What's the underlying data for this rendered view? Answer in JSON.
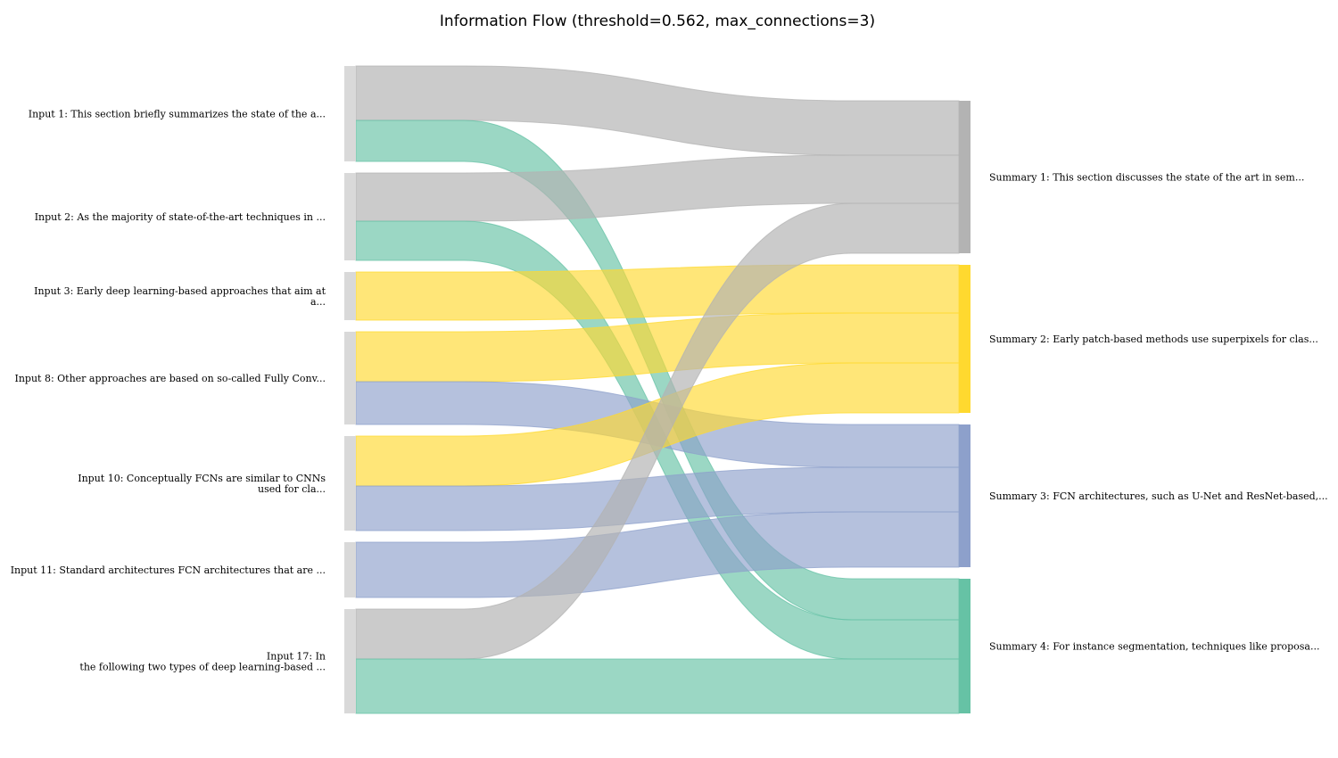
{
  "title": "Information Flow (threshold=0.562, max_connections=3)",
  "colors": {
    "gray": "#b3b3b3",
    "yellow": "#ffd92f",
    "blue": "#8da0cb",
    "green": "#66c2a5",
    "source_bar": "#d9d9d9"
  },
  "sources": [
    {
      "id": "in1",
      "lines": [
        "Input 1: This section briefly summarizes the state of the a..."
      ]
    },
    {
      "id": "in2",
      "lines": [
        "Input 2: As the majority of state-of-the-art techniques in ..."
      ]
    },
    {
      "id": "in3",
      "lines": [
        "Input 3: Early deep learning-based approaches that aim at",
        "a..."
      ]
    },
    {
      "id": "in8",
      "lines": [
        "Input 8: Other approaches are based on so-called Fully Conv..."
      ]
    },
    {
      "id": "in10",
      "lines": [
        "Input 10: Conceptually FCNs are similar to CNNs",
        "used for cla..."
      ]
    },
    {
      "id": "in11",
      "lines": [
        "Input 11: Standard architectures FCN architectures that are ..."
      ]
    },
    {
      "id": "in17",
      "lines": [
        "Input 17: In",
        "the following two types of deep learning-based ..."
      ]
    }
  ],
  "targets": [
    {
      "id": "s1",
      "color": "gray",
      "lines": [
        "Summary 1: This section discusses the state of the art in sem..."
      ]
    },
    {
      "id": "s2",
      "color": "yellow",
      "lines": [
        "Summary 2: Early patch-based methods use superpixels for clas..."
      ]
    },
    {
      "id": "s3",
      "color": "blue",
      "lines": [
        "Summary 3: FCN architectures, such as U-Net and ResNet-based,..."
      ]
    },
    {
      "id": "s4",
      "color": "green",
      "lines": [
        "Summary 4: For instance segmentation, techniques like proposa..."
      ]
    }
  ],
  "links": [
    {
      "source": "in1",
      "target": "s1",
      "color": "gray",
      "weight": 61
    },
    {
      "source": "in1",
      "target": "s4",
      "color": "green",
      "weight": 46
    },
    {
      "source": "in2",
      "target": "s1",
      "color": "gray",
      "weight": 54
    },
    {
      "source": "in2",
      "target": "s4",
      "color": "green",
      "weight": 44
    },
    {
      "source": "in3",
      "target": "s2",
      "color": "yellow",
      "weight": 54
    },
    {
      "source": "in8",
      "target": "s2",
      "color": "yellow",
      "weight": 56
    },
    {
      "source": "in8",
      "target": "s3",
      "color": "blue",
      "weight": 48
    },
    {
      "source": "in10",
      "target": "s2",
      "color": "yellow",
      "weight": 56
    },
    {
      "source": "in10",
      "target": "s3",
      "color": "blue",
      "weight": 50
    },
    {
      "source": "in11",
      "target": "s3",
      "color": "blue",
      "weight": 62
    },
    {
      "source": "in17",
      "target": "s1",
      "color": "gray",
      "weight": 56
    },
    {
      "source": "in17",
      "target": "s4",
      "color": "green",
      "weight": 61
    }
  ]
}
